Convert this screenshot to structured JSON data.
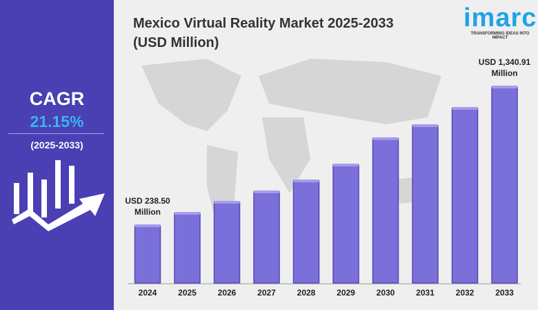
{
  "left_panel": {
    "cagr_label": "CAGR",
    "cagr_value": "21.15%",
    "period": "(2025-2033)",
    "icon": "growth-chart-arrow-icon"
  },
  "logo": {
    "name": "imarc",
    "tagline": "TRANSFORMING IDEAS INTO IMPACT"
  },
  "colors": {
    "panel": "#4a3fb3",
    "bar": "#7b6fd9",
    "accent": "#3bb4f0"
  },
  "chart_data": {
    "type": "bar",
    "title": "Mexico Virtual Reality Market 2025-2033",
    "subtitle": "(USD Million)",
    "categories": [
      "2024",
      "2025",
      "2026",
      "2027",
      "2028",
      "2029",
      "2030",
      "2031",
      "2032",
      "2033"
    ],
    "values": [
      238.5,
      337,
      425,
      508,
      595,
      721,
      930,
      1034,
      1171,
      1340.91
    ],
    "annotations": [
      {
        "category": "2024",
        "line1": "USD 238.50",
        "line2": "Million"
      },
      {
        "category": "2033",
        "line1": "USD 1,340.91",
        "line2": "Million"
      }
    ],
    "xlabel": "",
    "ylabel": "",
    "grid": false
  }
}
